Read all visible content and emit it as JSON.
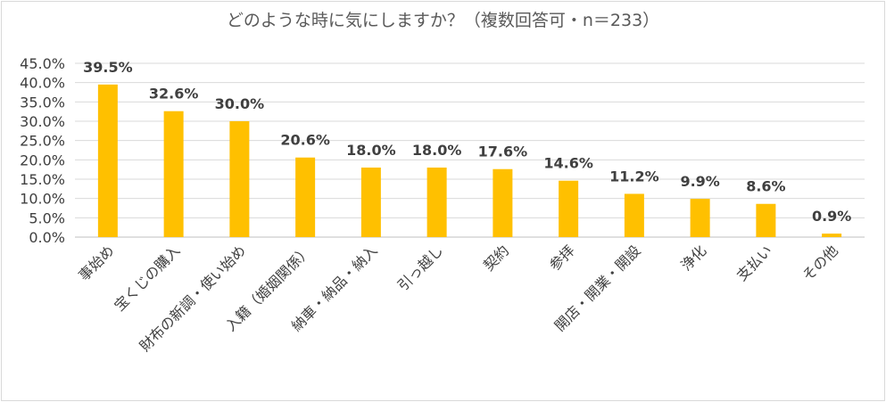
{
  "chart_data": {
    "type": "bar",
    "title": "どのような時に気にしますか？（複数回答可・n＝233）",
    "categories": [
      "事始め",
      "宝くじの購入",
      "財布の新調・使い始め",
      "入籍（婚姻関係）",
      "納車・納品・納入",
      "引っ越し",
      "契約",
      "参拝",
      "開店・開業・開設",
      "浄化",
      "支払い",
      "その他"
    ],
    "values": [
      39.5,
      32.6,
      30.0,
      20.6,
      18.0,
      18.0,
      17.6,
      14.6,
      11.2,
      9.9,
      8.6,
      0.9
    ],
    "data_labels": [
      "39.5%",
      "32.6%",
      "30.0%",
      "20.6%",
      "18.0%",
      "18.0%",
      "17.6%",
      "14.6%",
      "11.2%",
      "9.9%",
      "8.6%",
      "0.9%"
    ],
    "yticks": [
      "0.0%",
      "5.0%",
      "10.0%",
      "15.0%",
      "20.0%",
      "25.0%",
      "30.0%",
      "35.0%",
      "40.0%",
      "45.0%"
    ],
    "ylim": [
      0,
      45
    ],
    "grid": true,
    "legend": "none",
    "bar_color": "#ffc000",
    "xlabel": "",
    "ylabel": ""
  }
}
